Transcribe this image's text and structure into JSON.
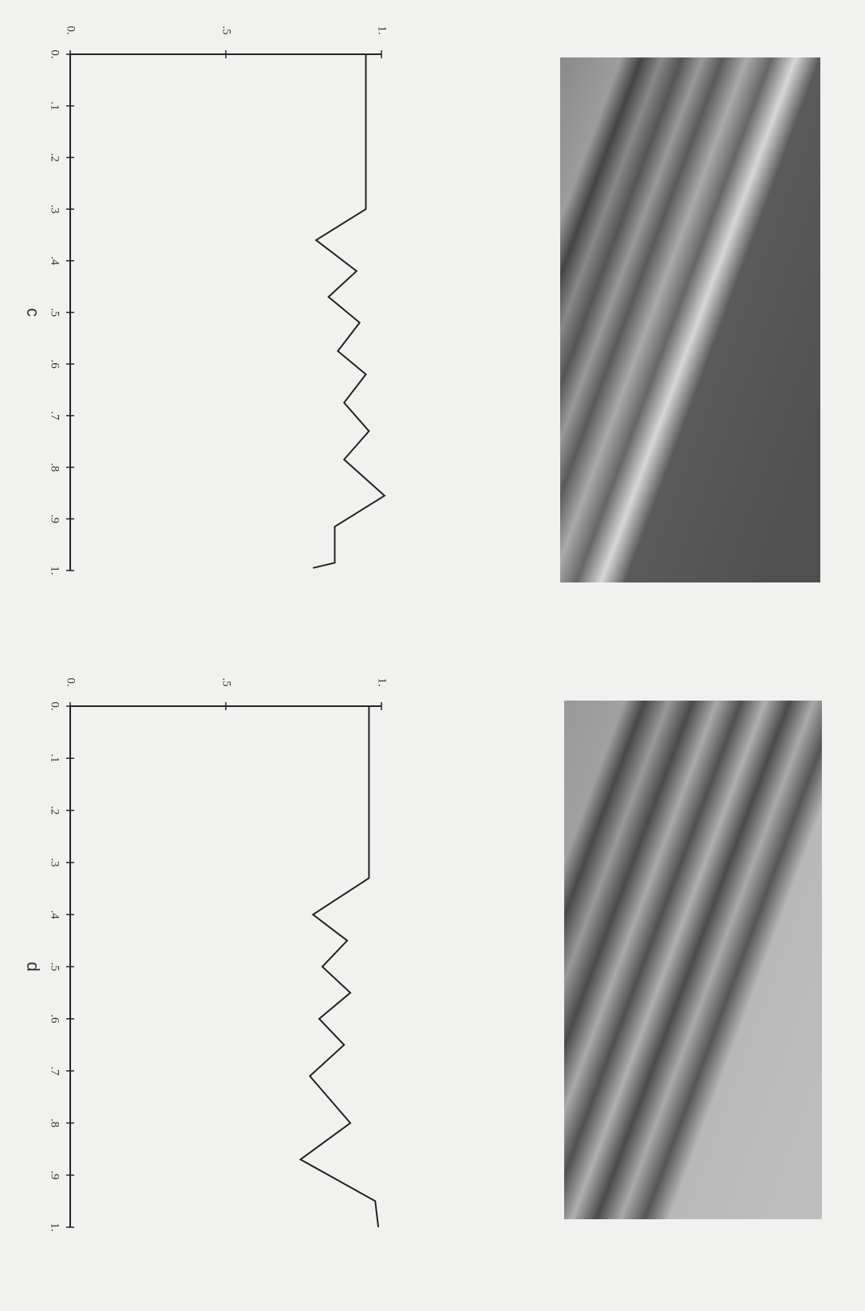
{
  "chart_data": [
    {
      "type": "line",
      "caption": "c",
      "x": [
        0,
        0.3,
        0.36,
        0.42,
        0.47,
        0.52,
        0.575,
        0.62,
        0.675,
        0.73,
        0.785,
        0.855,
        0.915,
        0.985,
        0.995
      ],
      "series": [
        {
          "color": "#222222",
          "values": [
            0.95,
            0.95,
            0.79,
            0.92,
            0.83,
            0.93,
            0.86,
            0.95,
            0.88,
            0.96,
            0.88,
            1.01,
            0.85,
            0.85,
            0.78
          ]
        }
      ],
      "xlim": [
        0,
        1
      ],
      "ylim": [
        0,
        1
      ],
      "xticks": [
        {
          "value": 0,
          "label": "0."
        },
        {
          "value": 0.1,
          "label": ".1"
        },
        {
          "value": 0.2,
          "label": ".2"
        },
        {
          "value": 0.3,
          "label": ".3"
        },
        {
          "value": 0.4,
          "label": ".4"
        },
        {
          "value": 0.5,
          "label": ".5"
        },
        {
          "value": 0.6,
          "label": ".6"
        },
        {
          "value": 0.7,
          "label": ".7"
        },
        {
          "value": 0.8,
          "label": ".8"
        },
        {
          "value": 0.9,
          "label": ".9"
        },
        {
          "value": 1,
          "label": "1."
        }
      ],
      "yticks": [
        {
          "value": 0,
          "label": "0."
        },
        {
          "value": 0.5,
          "label": ".5"
        },
        {
          "value": 1,
          "label": "1."
        }
      ]
    },
    {
      "type": "line",
      "caption": "d",
      "x": [
        0,
        0.33,
        0.4,
        0.45,
        0.5,
        0.55,
        0.6,
        0.65,
        0.71,
        0.8,
        0.87,
        0.95,
        1
      ],
      "series": [
        {
          "color": "#222222",
          "values": [
            0.96,
            0.96,
            0.78,
            0.89,
            0.81,
            0.9,
            0.8,
            0.88,
            0.77,
            0.9,
            0.74,
            0.98,
            0.99
          ]
        }
      ],
      "xlim": [
        0,
        1
      ],
      "ylim": [
        0,
        1
      ],
      "xticks": [
        {
          "value": 0,
          "label": "0."
        },
        {
          "value": 0.1,
          "label": ".1"
        },
        {
          "value": 0.2,
          "label": ".2"
        },
        {
          "value": 0.3,
          "label": ".3"
        },
        {
          "value": 0.4,
          "label": ".4"
        },
        {
          "value": 0.5,
          "label": ".5"
        },
        {
          "value": 0.6,
          "label": ".6"
        },
        {
          "value": 0.7,
          "label": ".7"
        },
        {
          "value": 0.8,
          "label": ".8"
        },
        {
          "value": 0.9,
          "label": ".9"
        },
        {
          "value": 1,
          "label": "1."
        }
      ],
      "yticks": [
        {
          "value": 0,
          "label": "0."
        },
        {
          "value": 0.5,
          "label": ".5"
        },
        {
          "value": 1,
          "label": "1."
        }
      ]
    }
  ]
}
